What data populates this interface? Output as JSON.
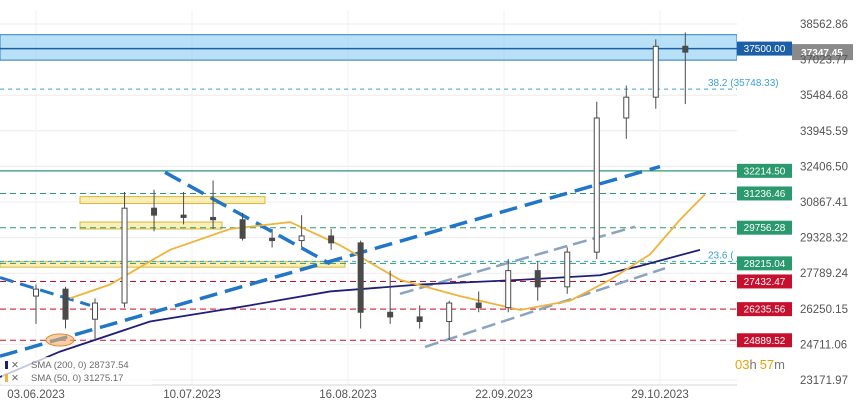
{
  "chart_data": {
    "type": "candlestick",
    "x_ticks": [
      "03.06.2023",
      "10.07.2023",
      "16.08.2023",
      "22.09.2023",
      "29.10.2023"
    ],
    "y_ticks": [
      "38562.86",
      "37023.77",
      "35484.68",
      "33945.59",
      "32406.50",
      "30867.41",
      "29328.32",
      "27789.24",
      "26250.15",
      "24711.06",
      "23171.97"
    ],
    "ylim": [
      23171.97,
      38562.86
    ],
    "grid": true,
    "current_price": "37347.45",
    "levels": [
      {
        "label": "37500.00",
        "value": 37500.0,
        "color": "#1a5fa8",
        "style": "zone"
      },
      {
        "label": "32214.50",
        "value": 32214.5,
        "color": "#2a9a6e",
        "style": "solid"
      },
      {
        "label": "31236.46",
        "value": 31236.46,
        "color": "#2a9a6e",
        "style": "dashed"
      },
      {
        "label": "29756.28",
        "value": 29756.28,
        "color": "#2a9a6e",
        "style": "dashed"
      },
      {
        "label": "28215.04",
        "value": 28215.04,
        "color": "#2a9a6e",
        "style": "dashed"
      },
      {
        "label": "27432.47",
        "value": 27432.47,
        "color": "#c8102e",
        "style": "dashed"
      },
      {
        "label": "26235.56",
        "value": 26235.56,
        "color": "#c8102e",
        "style": "dashed"
      },
      {
        "label": "24889.52",
        "value": 24889.52,
        "color": "#c8102e",
        "style": "dashed"
      }
    ],
    "fib_levels": [
      {
        "label": "38.2 (35748.33)",
        "value": 35748.33
      },
      {
        "label": "23.6 (",
        "value": 28300.0
      }
    ],
    "indicators": [
      {
        "label": "SMA (200, 0) 28737.54",
        "color": "#1f1f7a"
      },
      {
        "label": "SMA (50, 0) 31275.17",
        "color": "#f0b43c"
      }
    ],
    "timer": {
      "hours": "03",
      "h_unit": "h",
      "minutes": "57",
      "m_unit": "m"
    },
    "candles": [
      {
        "x": "2023-06-03",
        "o": 26800,
        "h": 27300,
        "l": 25600,
        "c": 27100
      },
      {
        "x": "2023-06-10",
        "o": 27100,
        "h": 27200,
        "l": 25400,
        "c": 25800
      },
      {
        "x": "2023-06-17",
        "o": 25800,
        "h": 26700,
        "l": 24900,
        "c": 26500
      },
      {
        "x": "2023-06-24",
        "o": 26500,
        "h": 31300,
        "l": 26300,
        "c": 30600
      },
      {
        "x": "2023-07-01",
        "o": 30600,
        "h": 31400,
        "l": 29600,
        "c": 30300
      },
      {
        "x": "2023-07-08",
        "o": 30300,
        "h": 31300,
        "l": 29900,
        "c": 30200
      },
      {
        "x": "2023-07-15",
        "o": 30200,
        "h": 31800,
        "l": 29700,
        "c": 30100
      },
      {
        "x": "2023-07-22",
        "o": 30100,
        "h": 30400,
        "l": 29200,
        "c": 29300
      },
      {
        "x": "2023-07-29",
        "o": 29300,
        "h": 29700,
        "l": 28900,
        "c": 29200
      },
      {
        "x": "2023-08-05",
        "o": 29200,
        "h": 30300,
        "l": 28900,
        "c": 29400
      },
      {
        "x": "2023-08-12",
        "o": 29400,
        "h": 29700,
        "l": 28800,
        "c": 29100
      },
      {
        "x": "2023-08-19",
        "o": 29100,
        "h": 29200,
        "l": 25400,
        "c": 26100
      },
      {
        "x": "2023-08-26",
        "o": 26100,
        "h": 27900,
        "l": 25600,
        "c": 25900
      },
      {
        "x": "2023-09-02",
        "o": 25900,
        "h": 26400,
        "l": 25400,
        "c": 25700
      },
      {
        "x": "2023-09-09",
        "o": 25700,
        "h": 26600,
        "l": 24900,
        "c": 26500
      },
      {
        "x": "2023-09-16",
        "o": 26500,
        "h": 27000,
        "l": 26100,
        "c": 26300
      },
      {
        "x": "2023-09-23",
        "o": 26300,
        "h": 28400,
        "l": 26100,
        "c": 27900
      },
      {
        "x": "2023-09-30",
        "o": 27900,
        "h": 28300,
        "l": 26600,
        "c": 27200
      },
      {
        "x": "2023-10-07",
        "o": 27200,
        "h": 28900,
        "l": 26900,
        "c": 28700
      },
      {
        "x": "2023-10-14",
        "o": 28700,
        "h": 35200,
        "l": 28400,
        "c": 34500
      },
      {
        "x": "2023-10-21",
        "o": 34500,
        "h": 35900,
        "l": 33600,
        "c": 35400
      },
      {
        "x": "2023-10-28",
        "o": 35400,
        "h": 37900,
        "l": 34900,
        "c": 37600
      },
      {
        "x": "2023-11-04",
        "o": 37600,
        "h": 38200,
        "l": 35100,
        "c": 37347
      }
    ]
  }
}
